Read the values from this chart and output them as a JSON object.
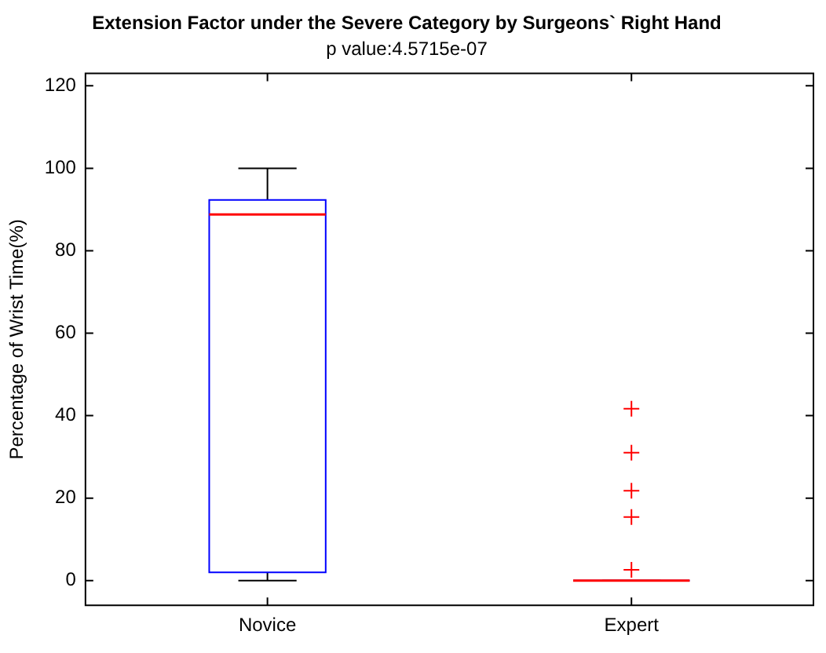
{
  "chart_data": {
    "type": "box",
    "title": "Extension Factor under the Severe Category by Surgeons` Right Hand",
    "subtitle": "p value:4.5715e-07",
    "ylabel": "Percentage of Wrist Time(%)",
    "categories": [
      "Novice",
      "Expert"
    ],
    "boxes": [
      {
        "low": 0,
        "q1": 2,
        "median": 88.8,
        "q3": 92.3,
        "high": 100
      },
      {
        "low": 0,
        "q1": 0,
        "median": 0,
        "q3": 0,
        "high": 0,
        "outliers": [
          41.7,
          31,
          21.8,
          15.4,
          2.6
        ]
      }
    ],
    "color": "#0000ff",
    "ylim": [
      -6,
      123
    ],
    "yticks": [
      0,
      20,
      40,
      60,
      80,
      100,
      120
    ],
    "grid": false,
    "legend": false,
    "marker": "cross"
  }
}
